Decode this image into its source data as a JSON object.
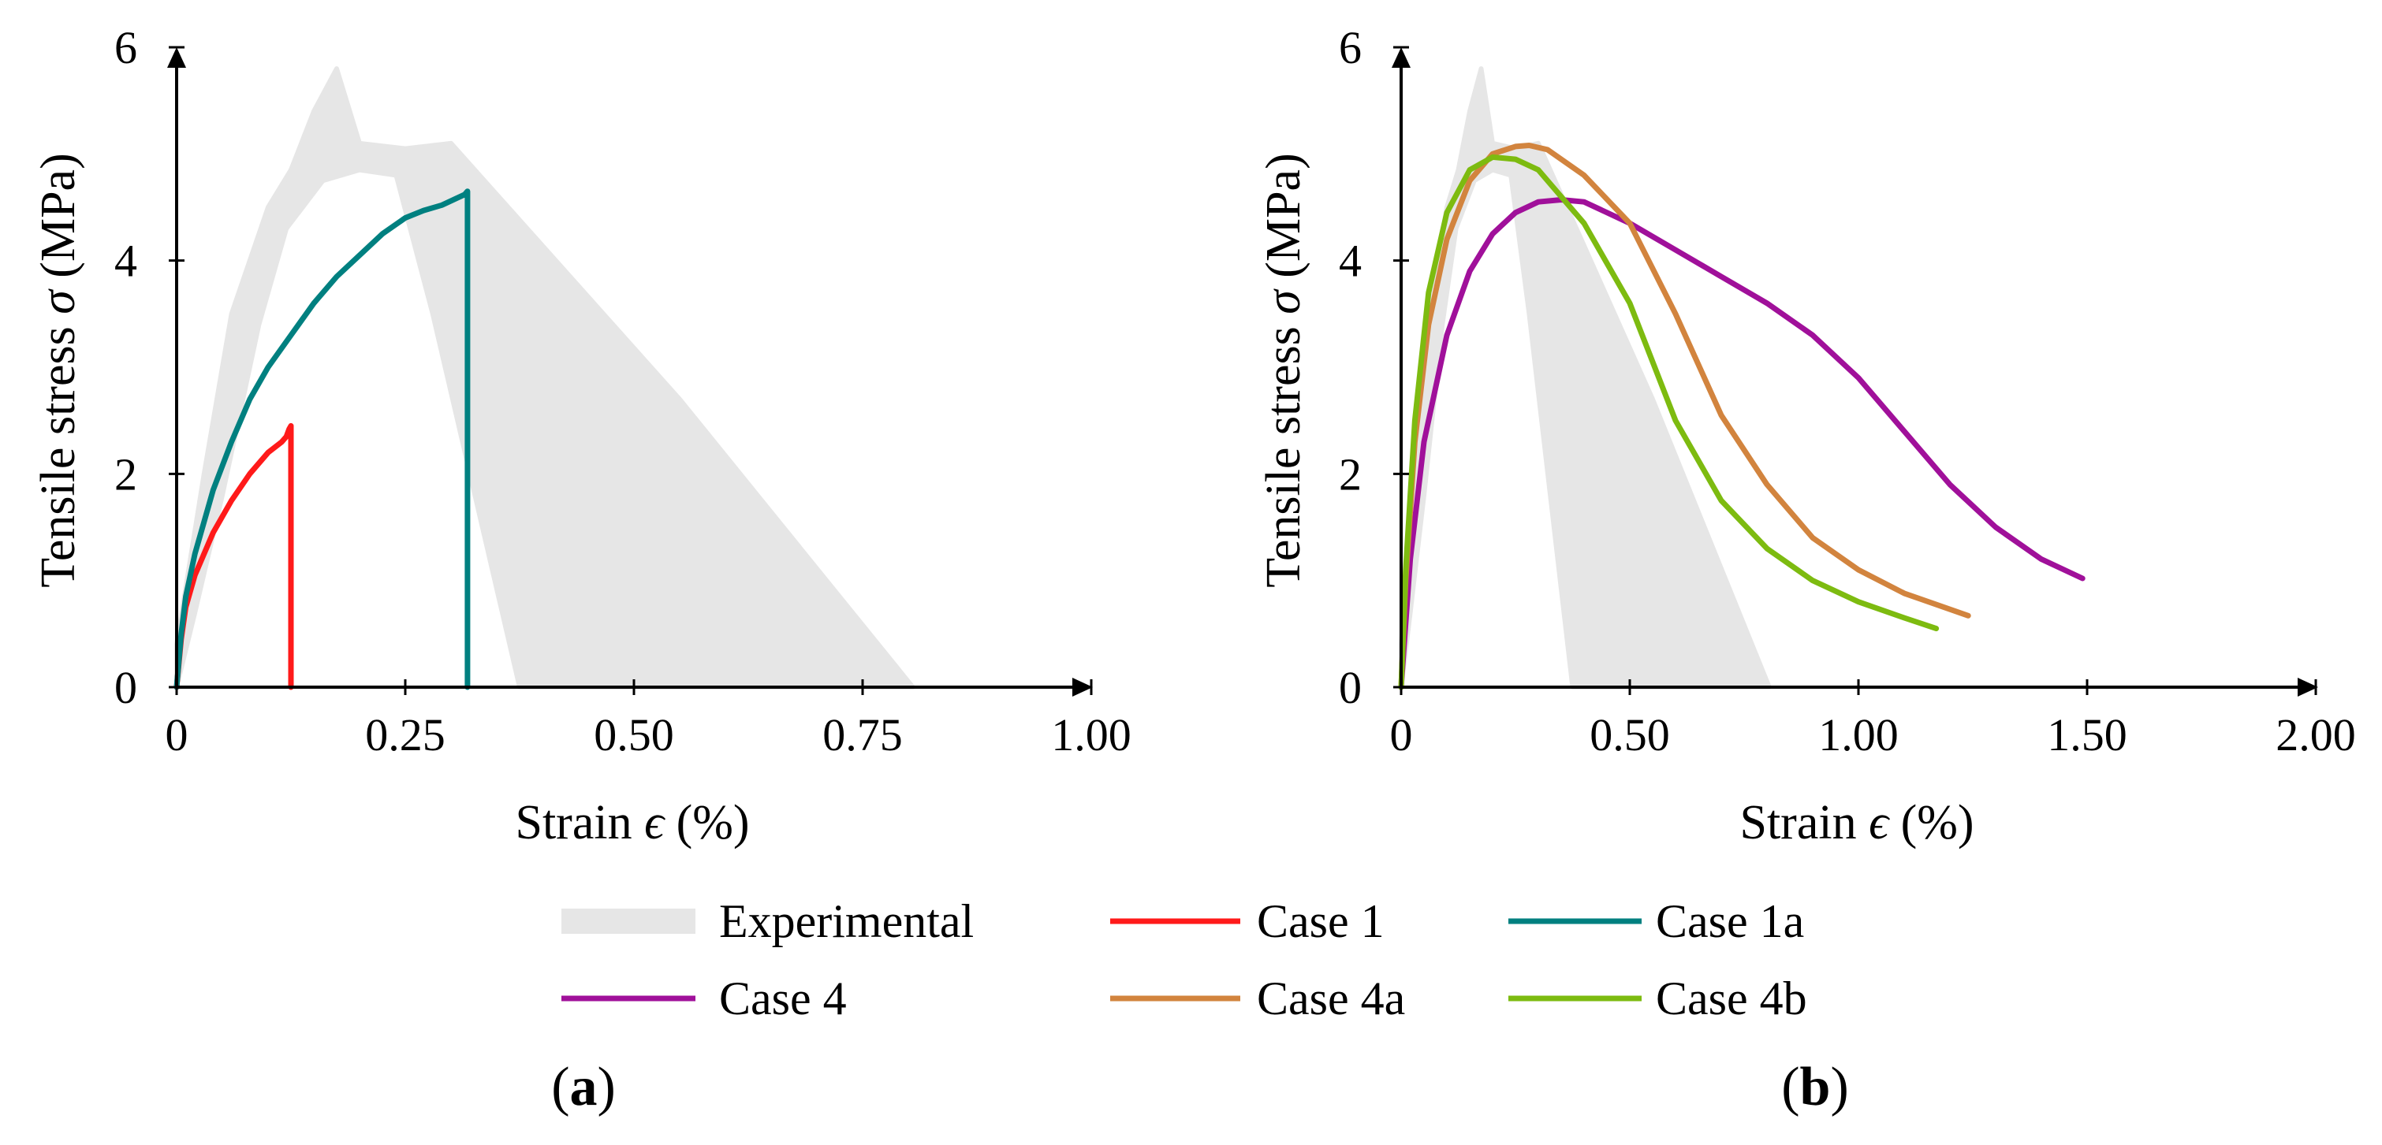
{
  "colors": {
    "Experimental": "#e6e6e6",
    "Case 1": "#ff1a1a",
    "Case 1a": "#008080",
    "Case 4": "#a0109a",
    "Case 4a": "#d2843e",
    "Case 4b": "#7dbb10"
  },
  "legend": {
    "items": [
      {
        "name": "Experimental",
        "label": "Experimental"
      },
      {
        "name": "Case 1",
        "label": "Case 1"
      },
      {
        "name": "Case 1a",
        "label": "Case 1a"
      },
      {
        "name": "Case 4",
        "label": "Case 4"
      },
      {
        "name": "Case 4a",
        "label": "Case 4a"
      },
      {
        "name": "Case 4b",
        "label": "Case 4b"
      }
    ]
  },
  "chart_data": [
    {
      "type": "line",
      "panel_label": {
        "open": "(",
        "letter": "a",
        "close": ")"
      },
      "xlabel": {
        "prefix": "Strain ",
        "symbol": "ϵ",
        "suffix": " (%)"
      },
      "ylabel": {
        "prefix": "Tensile stress ",
        "symbol": "σ",
        "suffix": " (MPa)"
      },
      "xlim": [
        0,
        1.0
      ],
      "ylim": [
        0,
        6
      ],
      "xticks": [
        0,
        0.25,
        0.5,
        0.75,
        1.0
      ],
      "xtick_labels": [
        "0",
        "0.25",
        "0.50",
        "0.75",
        "1.00"
      ],
      "yticks": [
        0,
        2,
        4,
        6
      ],
      "ytick_labels": [
        "0",
        "2",
        "4",
        "6"
      ],
      "band": {
        "name": "Experimental",
        "polygon": [
          [
            0.0,
            0.4
          ],
          [
            0.03,
            2.0
          ],
          [
            0.06,
            3.5
          ],
          [
            0.1,
            4.5
          ],
          [
            0.125,
            4.85
          ],
          [
            0.15,
            5.4
          ],
          [
            0.175,
            5.8
          ],
          [
            0.2,
            5.1
          ],
          [
            0.25,
            5.05
          ],
          [
            0.3,
            5.1
          ],
          [
            0.55,
            2.7
          ],
          [
            0.805,
            0.0
          ],
          [
            0.375,
            0.0
          ],
          [
            0.28,
            3.5
          ],
          [
            0.24,
            4.8
          ],
          [
            0.2,
            4.85
          ],
          [
            0.16,
            4.75
          ],
          [
            0.12,
            4.3
          ],
          [
            0.09,
            3.4
          ],
          [
            0.05,
            1.8
          ],
          [
            0.02,
            0.7
          ],
          [
            0.0,
            0.0
          ]
        ]
      },
      "series": [
        {
          "name": "Case 1",
          "x": [
            0.0,
            0.005,
            0.01,
            0.02,
            0.04,
            0.06,
            0.08,
            0.1,
            0.115,
            0.12,
            0.123,
            0.125,
            0.125
          ],
          "y": [
            0.0,
            0.45,
            0.75,
            1.05,
            1.45,
            1.75,
            2.0,
            2.2,
            2.3,
            2.35,
            2.42,
            2.45,
            0.0
          ]
        },
        {
          "name": "Case 1a",
          "x": [
            0.0,
            0.005,
            0.01,
            0.02,
            0.04,
            0.06,
            0.08,
            0.1,
            0.125,
            0.15,
            0.175,
            0.2,
            0.225,
            0.25,
            0.27,
            0.29,
            0.305,
            0.315,
            0.318,
            0.318
          ],
          "y": [
            0.0,
            0.5,
            0.85,
            1.25,
            1.85,
            2.3,
            2.7,
            3.0,
            3.3,
            3.6,
            3.85,
            4.05,
            4.25,
            4.4,
            4.47,
            4.52,
            4.58,
            4.62,
            4.65,
            0.0
          ]
        }
      ]
    },
    {
      "type": "line",
      "panel_label": {
        "open": "(",
        "letter": "b",
        "close": ")"
      },
      "xlabel": {
        "prefix": "Strain ",
        "symbol": "ϵ",
        "suffix": " (%)"
      },
      "ylabel": {
        "prefix": "Tensile stress ",
        "symbol": "σ",
        "suffix": " (MPa)"
      },
      "xlim": [
        0,
        2.0
      ],
      "ylim": [
        0,
        6
      ],
      "xticks": [
        0,
        0.5,
        1.0,
        1.5,
        2.0
      ],
      "xtick_labels": [
        "0",
        "0.50",
        "1.00",
        "1.50",
        "2.00"
      ],
      "yticks": [
        0,
        2,
        4,
        6
      ],
      "ytick_labels": [
        "0",
        "2",
        "4",
        "6"
      ],
      "band": {
        "name": "Experimental",
        "polygon": [
          [
            0.0,
            0.4
          ],
          [
            0.03,
            2.0
          ],
          [
            0.06,
            3.5
          ],
          [
            0.1,
            4.5
          ],
          [
            0.125,
            4.85
          ],
          [
            0.15,
            5.4
          ],
          [
            0.175,
            5.8
          ],
          [
            0.2,
            5.1
          ],
          [
            0.25,
            5.05
          ],
          [
            0.3,
            5.1
          ],
          [
            0.55,
            2.7
          ],
          [
            0.805,
            0.0
          ],
          [
            0.375,
            0.0
          ],
          [
            0.28,
            3.5
          ],
          [
            0.24,
            4.8
          ],
          [
            0.2,
            4.85
          ],
          [
            0.16,
            4.75
          ],
          [
            0.12,
            4.3
          ],
          [
            0.09,
            3.4
          ],
          [
            0.05,
            1.8
          ],
          [
            0.02,
            0.7
          ],
          [
            0.0,
            0.0
          ]
        ]
      },
      "series": [
        {
          "name": "Case 4",
          "x": [
            0.0,
            0.02,
            0.05,
            0.1,
            0.15,
            0.2,
            0.25,
            0.3,
            0.35,
            0.4,
            0.5,
            0.6,
            0.7,
            0.8,
            0.9,
            1.0,
            1.1,
            1.2,
            1.3,
            1.4,
            1.49
          ],
          "y": [
            0.0,
            1.2,
            2.3,
            3.3,
            3.9,
            4.25,
            4.45,
            4.55,
            4.57,
            4.55,
            4.35,
            4.1,
            3.85,
            3.6,
            3.3,
            2.9,
            2.4,
            1.9,
            1.5,
            1.2,
            1.02
          ]
        },
        {
          "name": "Case 4a",
          "x": [
            0.0,
            0.01,
            0.03,
            0.06,
            0.1,
            0.15,
            0.2,
            0.25,
            0.28,
            0.32,
            0.4,
            0.5,
            0.6,
            0.7,
            0.8,
            0.9,
            1.0,
            1.1,
            1.24
          ],
          "y": [
            0.0,
            1.0,
            2.3,
            3.4,
            4.2,
            4.75,
            5.0,
            5.07,
            5.08,
            5.04,
            4.8,
            4.35,
            3.5,
            2.55,
            1.9,
            1.4,
            1.1,
            0.88,
            0.67
          ]
        },
        {
          "name": "Case 4b",
          "x": [
            0.0,
            0.01,
            0.03,
            0.06,
            0.1,
            0.15,
            0.2,
            0.25,
            0.3,
            0.35,
            0.4,
            0.5,
            0.6,
            0.7,
            0.8,
            0.9,
            1.0,
            1.1,
            1.17
          ],
          "y": [
            0.0,
            1.1,
            2.5,
            3.7,
            4.45,
            4.85,
            4.97,
            4.95,
            4.85,
            4.6,
            4.35,
            3.6,
            2.5,
            1.75,
            1.3,
            1.0,
            0.8,
            0.65,
            0.55
          ]
        }
      ]
    }
  ]
}
